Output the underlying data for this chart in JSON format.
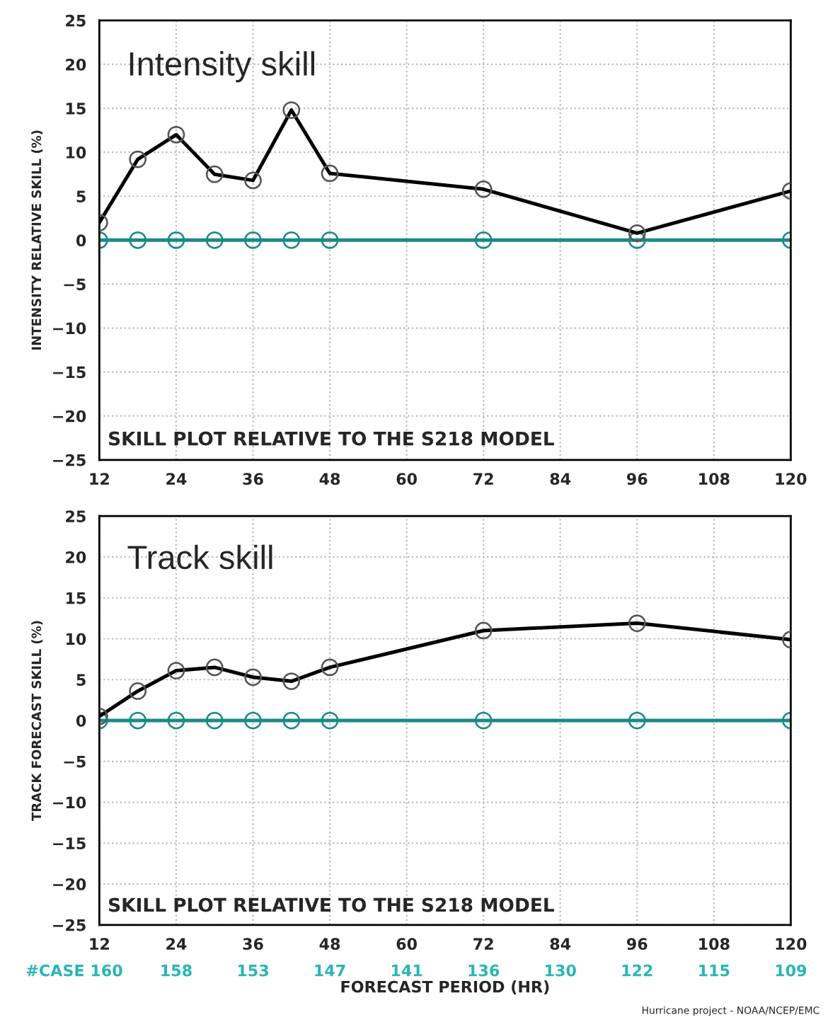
{
  "chart_data": [
    {
      "type": "line",
      "title": "Intensity skill",
      "ylabel": "INTENSITY RELATIVE SKILL (%)",
      "x": [
        12,
        18,
        24,
        30,
        36,
        42,
        48,
        72,
        96,
        120
      ],
      "series": [
        {
          "color": "#000000",
          "values": [
            2,
            9.2,
            12,
            7.5,
            6.8,
            14.8,
            7.6,
            5.8,
            0.8,
            5.6
          ]
        },
        {
          "color": "#1a8a8a",
          "values": [
            0,
            0,
            0,
            0,
            0,
            0,
            0,
            0,
            0,
            0
          ]
        }
      ],
      "xlim": [
        12,
        120
      ],
      "xticks": [
        12,
        24,
        36,
        48,
        60,
        72,
        84,
        96,
        108,
        120
      ],
      "ylim": [
        -25,
        25
      ],
      "yticks": [
        -25,
        -20,
        -15,
        -10,
        -5,
        0,
        5,
        10,
        15,
        20,
        25
      ],
      "grid": true,
      "marker": "circle",
      "line_style": "solid",
      "legend": false,
      "annotations": [
        "SKILL PLOT RELATIVE TO THE S218 MODEL"
      ]
    },
    {
      "type": "line",
      "title": "Track skill",
      "ylabel": "TRACK FORECAST SKILL (%)",
      "xlabel": "FORECAST PERIOD (HR)",
      "x": [
        12,
        18,
        24,
        30,
        36,
        42,
        48,
        72,
        96,
        120
      ],
      "series": [
        {
          "color": "#000000",
          "values": [
            0.5,
            3.6,
            6.1,
            6.5,
            5.3,
            4.8,
            6.5,
            11,
            11.9,
            9.9
          ]
        },
        {
          "color": "#1a8a8a",
          "values": [
            0,
            0,
            0,
            0,
            0,
            0,
            0,
            0,
            0,
            0
          ]
        }
      ],
      "xlim": [
        12,
        120
      ],
      "xticks": [
        12,
        24,
        36,
        48,
        60,
        72,
        84,
        96,
        108,
        120
      ],
      "ylim": [
        -25,
        25
      ],
      "yticks": [
        -25,
        -20,
        -15,
        -10,
        -5,
        0,
        5,
        10,
        15,
        20,
        25
      ],
      "grid": true,
      "marker": "circle",
      "line_style": "solid",
      "legend": false,
      "annotations": [
        "SKILL PLOT RELATIVE TO THE S218 MODEL",
        "#CASE 160",
        "158",
        "153",
        "147",
        "141",
        "136",
        "130",
        "122",
        "115",
        "109",
        "Hurricane project - NOAA/NCEP/EMC"
      ]
    }
  ]
}
